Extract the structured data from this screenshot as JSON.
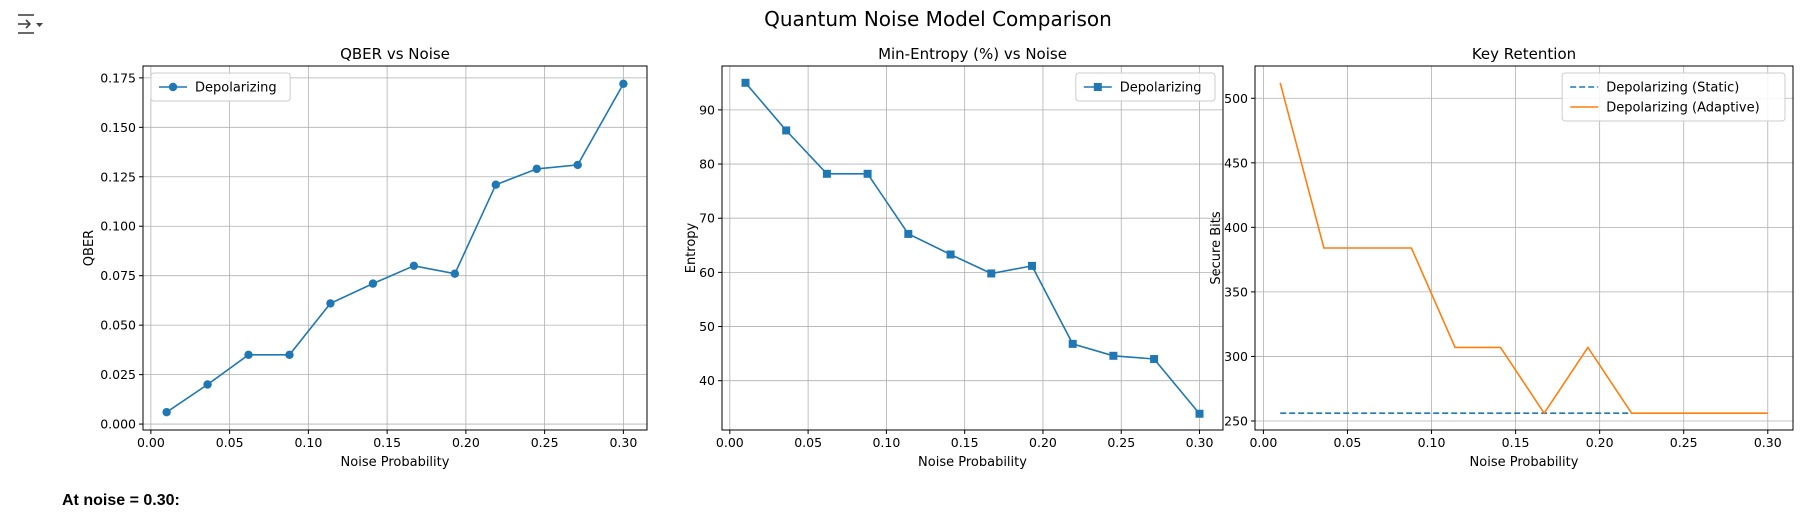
{
  "figure": {
    "suptitle": "Quantum Noise Model Comparison"
  },
  "note": "At noise = 0.30:",
  "toolbar": {
    "icon": "collapse-output-icon"
  },
  "chart_data": [
    {
      "type": "line",
      "title": "QBER vs Noise",
      "xlabel": "Noise Probability",
      "ylabel": "QBER",
      "xlim": [
        -0.005,
        0.315
      ],
      "ylim": [
        -0.003,
        0.181
      ],
      "xticks": [
        0.0,
        0.05,
        0.1,
        0.15,
        0.2,
        0.25,
        0.3
      ],
      "xtick_labels": [
        "0.00",
        "0.05",
        "0.10",
        "0.15",
        "0.20",
        "0.25",
        "0.30"
      ],
      "yticks": [
        0.0,
        0.025,
        0.05,
        0.075,
        0.1,
        0.125,
        0.15,
        0.175
      ],
      "ytick_labels": [
        "0.000",
        "0.025",
        "0.050",
        "0.075",
        "0.100",
        "0.125",
        "0.150",
        "0.175"
      ],
      "grid": true,
      "legend": "upper-left",
      "series": [
        {
          "name": "Depolarizing",
          "color": "#1f77b4",
          "marker": "circle",
          "style": "solid",
          "x": [
            0.01,
            0.036,
            0.062,
            0.088,
            0.114,
            0.141,
            0.167,
            0.193,
            0.219,
            0.245,
            0.271,
            0.3
          ],
          "y": [
            0.006,
            0.02,
            0.035,
            0.035,
            0.061,
            0.071,
            0.08,
            0.076,
            0.121,
            0.129,
            0.131,
            0.172
          ]
        }
      ]
    },
    {
      "type": "line",
      "title": "Min-Entropy (%) vs Noise",
      "xlabel": "Noise Probability",
      "ylabel": "Entropy",
      "xlim": [
        -0.005,
        0.315
      ],
      "ylim": [
        30.9,
        98.1
      ],
      "xticks": [
        0.0,
        0.05,
        0.1,
        0.15,
        0.2,
        0.25,
        0.3
      ],
      "xtick_labels": [
        "0.00",
        "0.05",
        "0.10",
        "0.15",
        "0.20",
        "0.25",
        "0.30"
      ],
      "yticks": [
        40,
        50,
        60,
        70,
        80,
        90
      ],
      "ytick_labels": [
        "40",
        "50",
        "60",
        "70",
        "80",
        "90"
      ],
      "grid": true,
      "legend": "upper-right",
      "series": [
        {
          "name": "Depolarizing",
          "color": "#1f77b4",
          "marker": "square",
          "style": "solid",
          "x": [
            0.01,
            0.036,
            0.062,
            0.088,
            0.114,
            0.141,
            0.167,
            0.193,
            0.219,
            0.245,
            0.271,
            0.3
          ],
          "y": [
            95.0,
            86.2,
            78.2,
            78.2,
            67.1,
            63.3,
            59.8,
            61.2,
            46.8,
            44.6,
            44.0,
            33.9
          ]
        }
      ]
    },
    {
      "type": "line",
      "title": "Key Retention",
      "xlabel": "Noise Probability",
      "ylabel": "Secure Bits",
      "xlim": [
        -0.005,
        0.315
      ],
      "ylim": [
        243.0,
        525.0
      ],
      "xticks": [
        0.0,
        0.05,
        0.1,
        0.15,
        0.2,
        0.25,
        0.3
      ],
      "xtick_labels": [
        "0.00",
        "0.05",
        "0.10",
        "0.15",
        "0.20",
        "0.25",
        "0.30"
      ],
      "yticks": [
        250,
        300,
        350,
        400,
        450,
        500
      ],
      "ytick_labels": [
        "250",
        "300",
        "350",
        "400",
        "450",
        "500"
      ],
      "grid": true,
      "legend": "upper-right",
      "series": [
        {
          "name": "Depolarizing (Static)",
          "color": "#1f77b4",
          "marker": "none",
          "style": "dashed",
          "x": [
            0.01,
            0.036,
            0.062,
            0.088,
            0.114,
            0.141,
            0.167,
            0.193,
            0.219
          ],
          "y": [
            256,
            256,
            256,
            256,
            256,
            256,
            256,
            256,
            256
          ]
        },
        {
          "name": "Depolarizing (Adaptive)",
          "color": "#ff7f0e",
          "marker": "none",
          "style": "solid",
          "x": [
            0.01,
            0.036,
            0.062,
            0.088,
            0.114,
            0.141,
            0.167,
            0.193,
            0.219,
            0.245,
            0.271,
            0.3
          ],
          "y": [
            512,
            384,
            384,
            384,
            307,
            307,
            256,
            307,
            256,
            256,
            256,
            256
          ]
        }
      ]
    }
  ]
}
